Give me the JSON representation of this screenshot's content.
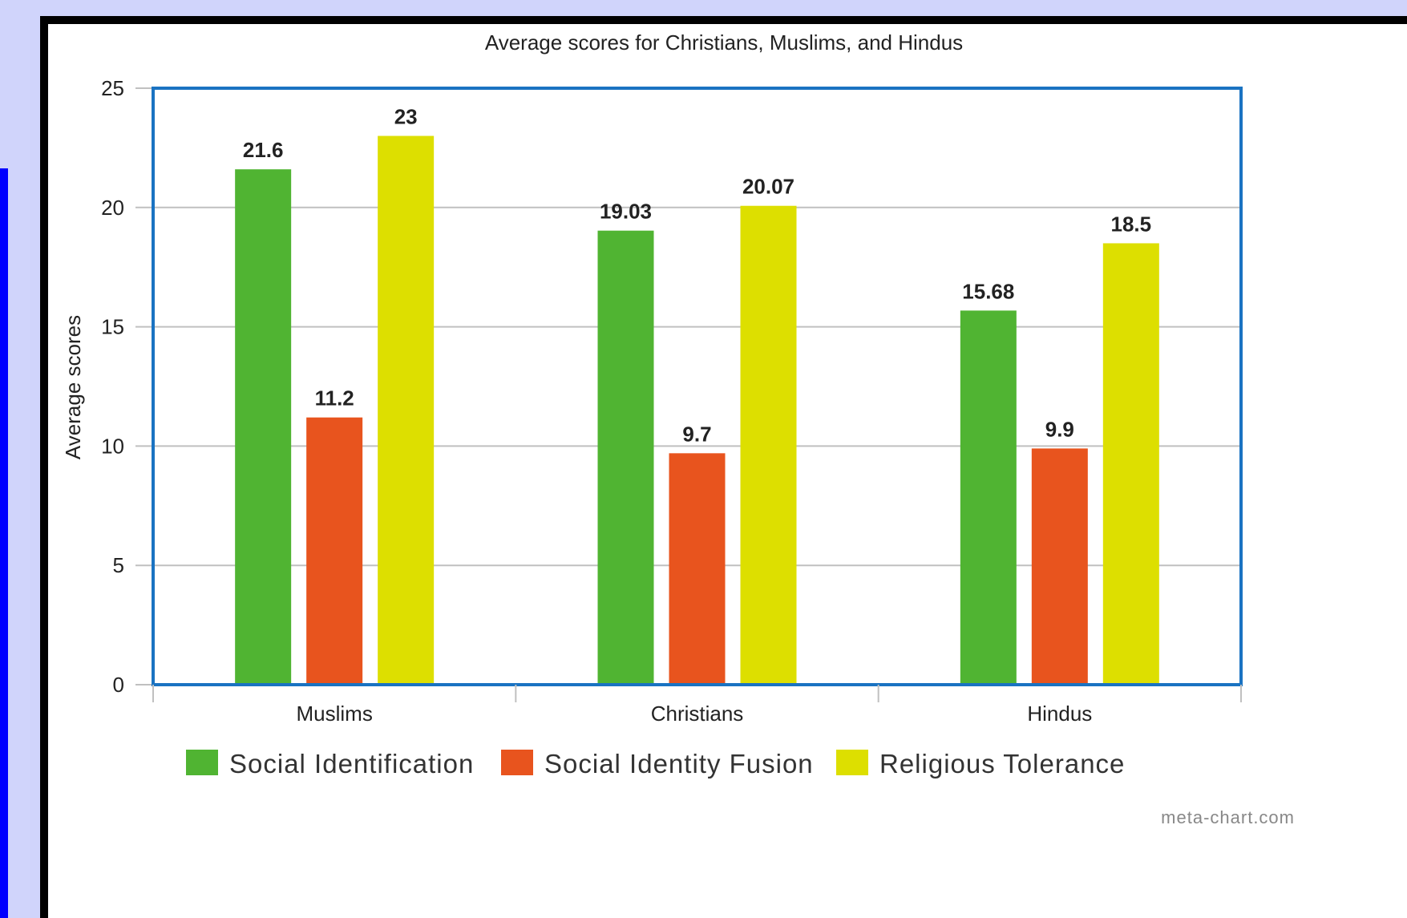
{
  "chart_data": {
    "type": "bar",
    "title": "Average scores for Christians, Muslims, and Hindus",
    "ylabel": "Average scores",
    "xlabel": "",
    "categories": [
      "Muslims",
      "Christians",
      "Hindus"
    ],
    "ylim": [
      0,
      25
    ],
    "yticks": [
      0,
      5,
      10,
      15,
      20,
      25
    ],
    "grid": true,
    "legend_position": "bottom",
    "series": [
      {
        "name": "Social Identification",
        "color": "#50b432",
        "values": [
          21.6,
          19.03,
          15.68
        ],
        "labels": [
          "21.6",
          "19.03",
          "15.68"
        ]
      },
      {
        "name": "Social Identity Fusion",
        "color": "#e8541e",
        "values": [
          11.2,
          9.7,
          9.9
        ],
        "labels": [
          "11.2",
          "9.7",
          "9.9"
        ]
      },
      {
        "name": "Religious Tolerance",
        "color": "#dddf00",
        "values": [
          23,
          20.07,
          18.5
        ],
        "labels": [
          "23",
          "20.07",
          "18.5"
        ]
      }
    ],
    "plot_border_color": "#1a73c2",
    "credit": "meta-chart.com"
  }
}
